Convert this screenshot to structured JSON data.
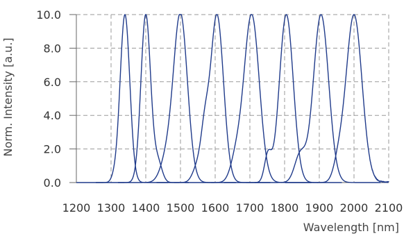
{
  "chart_data": {
    "type": "line",
    "xlabel": "Wavelength [nm]",
    "ylabel": "Norm. Intensity [a.u.]",
    "xlim": [
      1200,
      2100
    ],
    "ylim": [
      0,
      10
    ],
    "xticks": [
      1200,
      1300,
      1400,
      1500,
      1600,
      1700,
      1800,
      1900,
      2000,
      2100
    ],
    "xtick_labels": [
      "1200",
      "1300",
      "1400",
      "1500",
      "1600",
      "1700",
      "1800",
      "1900",
      "2000",
      "2100"
    ],
    "yticks": [
      0,
      2,
      4,
      6,
      8,
      10
    ],
    "ytick_labels": [
      "0.0",
      "2.0",
      "4.0",
      "6.0",
      "8.0",
      "10.0"
    ],
    "grid": true,
    "line_color": "#1f3a8a",
    "series": [
      {
        "peak": 1340,
        "width": 14,
        "shoulders": [
          {
            "x": 1308,
            "h": 0.2,
            "w": 8
          }
        ]
      },
      {
        "peak": 1400,
        "width": 14,
        "shoulders": [
          {
            "x": 1435,
            "h": 1.2,
            "w": 12
          }
        ]
      },
      {
        "peak": 1500,
        "width": 20,
        "shoulders": [
          {
            "x": 1460,
            "h": 1.3,
            "w": 18
          }
        ]
      },
      {
        "peak": 1605,
        "width": 19,
        "shoulders": [
          {
            "x": 1570,
            "h": 2.3,
            "w": 11
          },
          {
            "x": 1550,
            "h": 1.0,
            "w": 14
          }
        ]
      },
      {
        "peak": 1705,
        "width": 22,
        "shoulders": [
          {
            "x": 1660,
            "h": 1.3,
            "w": 16
          }
        ]
      },
      {
        "peak": 1805,
        "width": 20,
        "shoulders": [
          {
            "x": 1752,
            "h": 1.6,
            "w": 10
          }
        ]
      },
      {
        "peak": 1905,
        "width": 22,
        "shoulders": [
          {
            "x": 1845,
            "h": 1.65,
            "w": 16
          }
        ]
      },
      {
        "peak": 2000,
        "width": 23,
        "shoulders": [
          {
            "x": 1955,
            "h": 1.0,
            "w": 14
          }
        ]
      }
    ]
  }
}
